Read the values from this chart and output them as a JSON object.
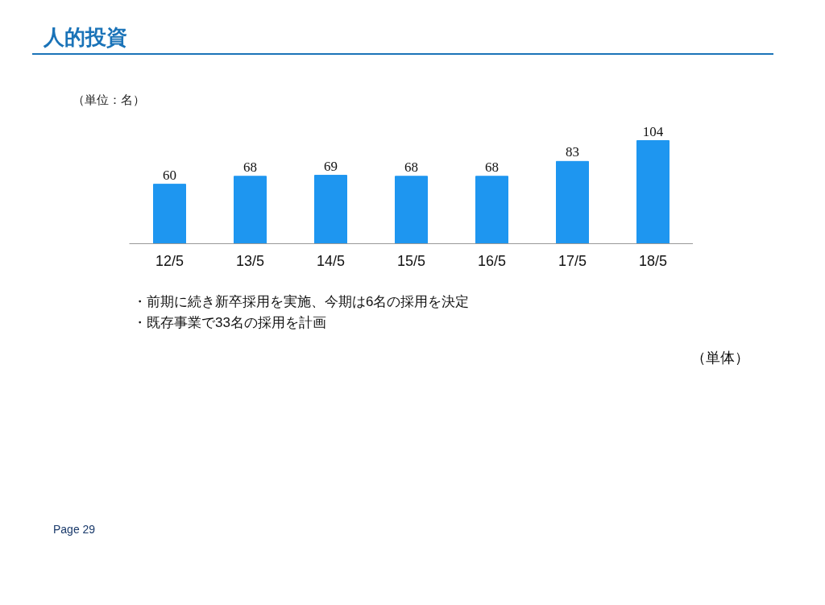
{
  "chart_data": {
    "type": "bar",
    "title": "人的投資",
    "ylabel": "（単位：名）",
    "categories": [
      "12/5",
      "13/5",
      "14/5",
      "15/5",
      "16/5",
      "17/5",
      "18/5"
    ],
    "values": [
      60,
      68,
      69,
      68,
      68,
      83,
      104
    ],
    "color": "#1e96f0",
    "data_labels": true,
    "annotations": [
      "・前期に続き新卒採用を実施、今期は6名の採用を決定",
      "・既存事業で33名の採用を計画",
      "（単体）",
      "Page 29"
    ]
  }
}
